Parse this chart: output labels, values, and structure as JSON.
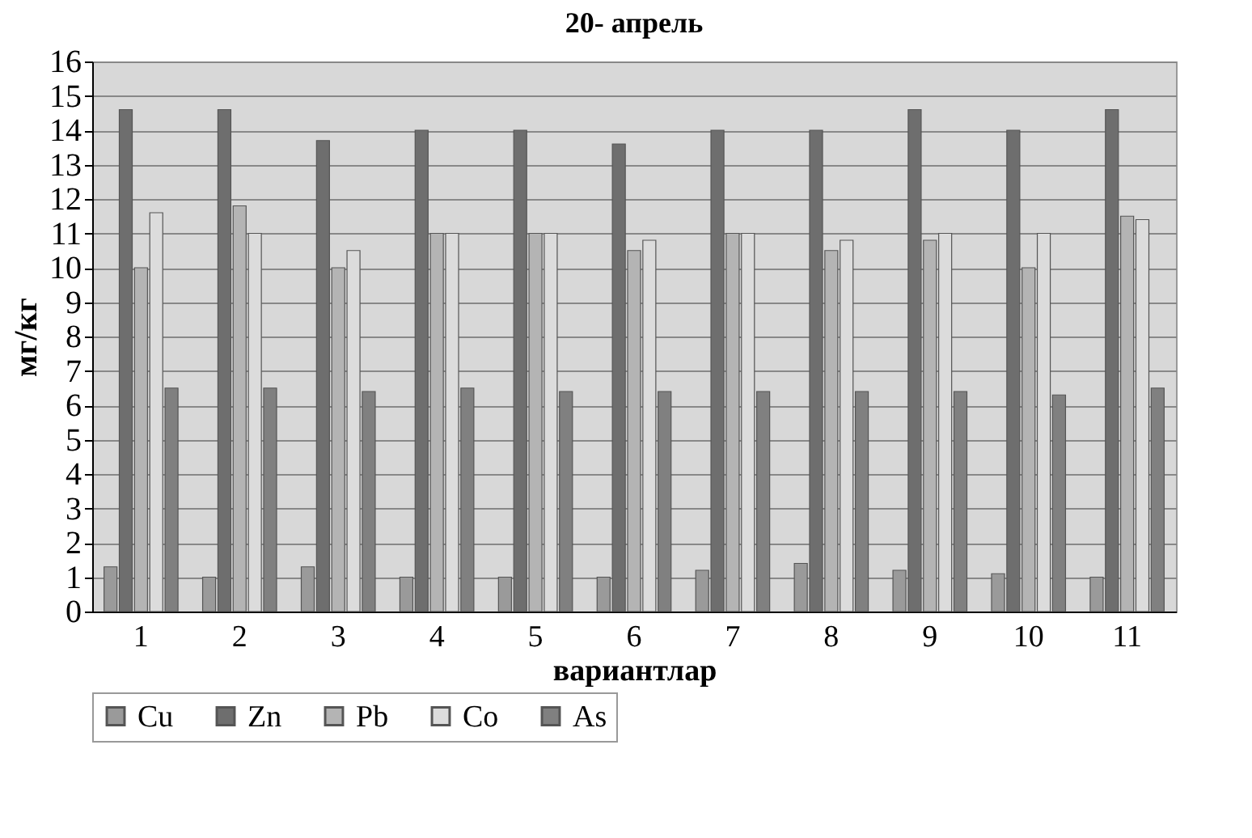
{
  "chart_data": {
    "type": "bar",
    "title": "20- апрель",
    "xlabel": "вариантлар",
    "ylabel": "мг/кг",
    "categories": [
      "1",
      "2",
      "3",
      "4",
      "5",
      "6",
      "7",
      "8",
      "9",
      "10",
      "11"
    ],
    "series": [
      {
        "name": "Cu",
        "color": "#9a9a9a",
        "values": [
          1.3,
          1.0,
          1.3,
          1.0,
          1.0,
          1.0,
          1.2,
          1.4,
          1.2,
          1.1,
          1.0
        ]
      },
      {
        "name": "Zn",
        "color": "#6e6e6e",
        "values": [
          14.6,
          14.6,
          13.7,
          14.0,
          14.0,
          13.6,
          14.0,
          14.0,
          14.6,
          14.0,
          14.6
        ]
      },
      {
        "name": "Pb",
        "color": "#b4b4b4",
        "values": [
          10.0,
          11.8,
          10.0,
          11.0,
          11.0,
          10.5,
          11.0,
          10.5,
          10.8,
          10.0,
          11.5
        ]
      },
      {
        "name": "Co",
        "color": "#dcdcdc",
        "values": [
          11.6,
          11.0,
          10.5,
          11.0,
          11.0,
          10.8,
          11.0,
          10.8,
          11.0,
          11.0,
          11.4
        ]
      },
      {
        "name": "As",
        "color": "#808080",
        "values": [
          6.5,
          6.5,
          6.4,
          6.5,
          6.4,
          6.4,
          6.4,
          6.4,
          6.4,
          6.3,
          6.5
        ]
      }
    ],
    "ylim": [
      0,
      16
    ],
    "yticks": [
      0,
      1,
      2,
      3,
      4,
      5,
      6,
      7,
      8,
      9,
      10,
      11,
      12,
      13,
      14,
      15,
      16
    ],
    "grid": "y",
    "legend": "bottom"
  }
}
